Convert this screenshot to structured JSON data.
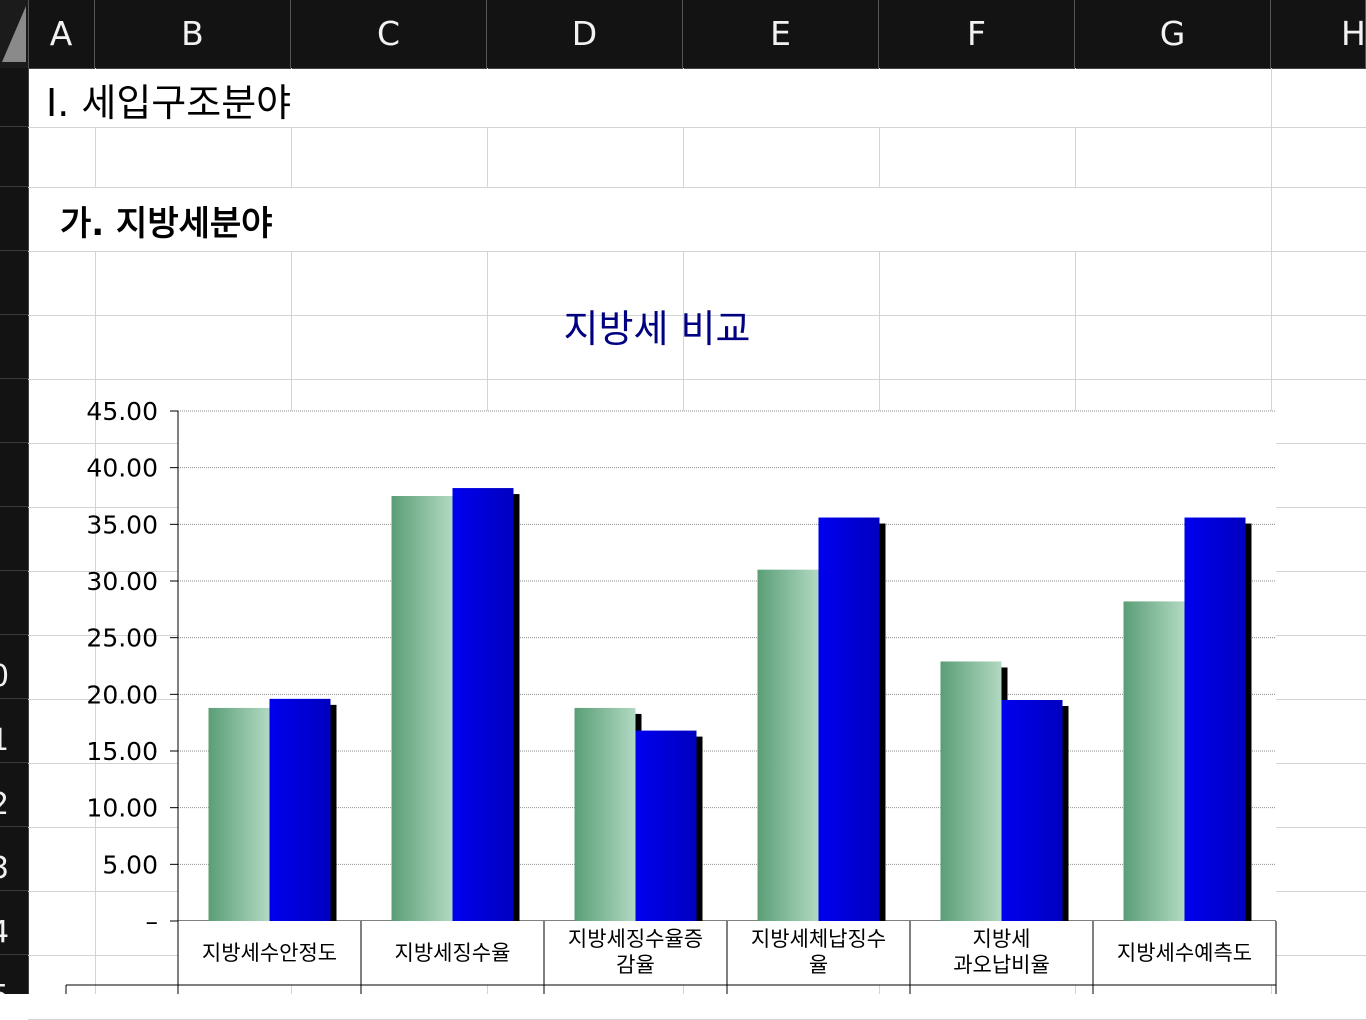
{
  "sheet": {
    "columns": [
      "A",
      "B",
      "C",
      "D",
      "E",
      "F",
      "G",
      "H"
    ],
    "rows": [
      "",
      "",
      "",
      "",
      "",
      "",
      "",
      "",
      "",
      "0",
      "1",
      "2",
      "3",
      "4",
      "5"
    ],
    "section_title": "Ⅰ. 세입구조분야",
    "subsection_title": "가. 지방세분야"
  },
  "chart_data": {
    "type": "bar",
    "title": "지방세 비교",
    "xlabel": "",
    "ylabel": "",
    "ylim": [
      0,
      45
    ],
    "yticks": [
      "–",
      "5.00",
      "10.00",
      "15.00",
      "20.00",
      "25.00",
      "30.00",
      "35.00",
      "40.00",
      "45.00"
    ],
    "categories": [
      [
        "지방세수안정도"
      ],
      [
        "지방세징수율"
      ],
      [
        "지방세징수율증",
        "감율"
      ],
      [
        "지방세체납징수",
        "율"
      ],
      [
        "지방세",
        "과오납비율"
      ],
      [
        "지방세수예측도"
      ]
    ],
    "series": [
      {
        "values": [
          18.8,
          37.5,
          18.8,
          31.0,
          22.9,
          28.2
        ],
        "color": "#a6d1b8"
      },
      {
        "values": [
          19.6,
          38.2,
          16.8,
          35.6,
          19.5,
          35.6
        ],
        "color": "#0000ff"
      }
    ],
    "grid": true,
    "legend": "none"
  }
}
